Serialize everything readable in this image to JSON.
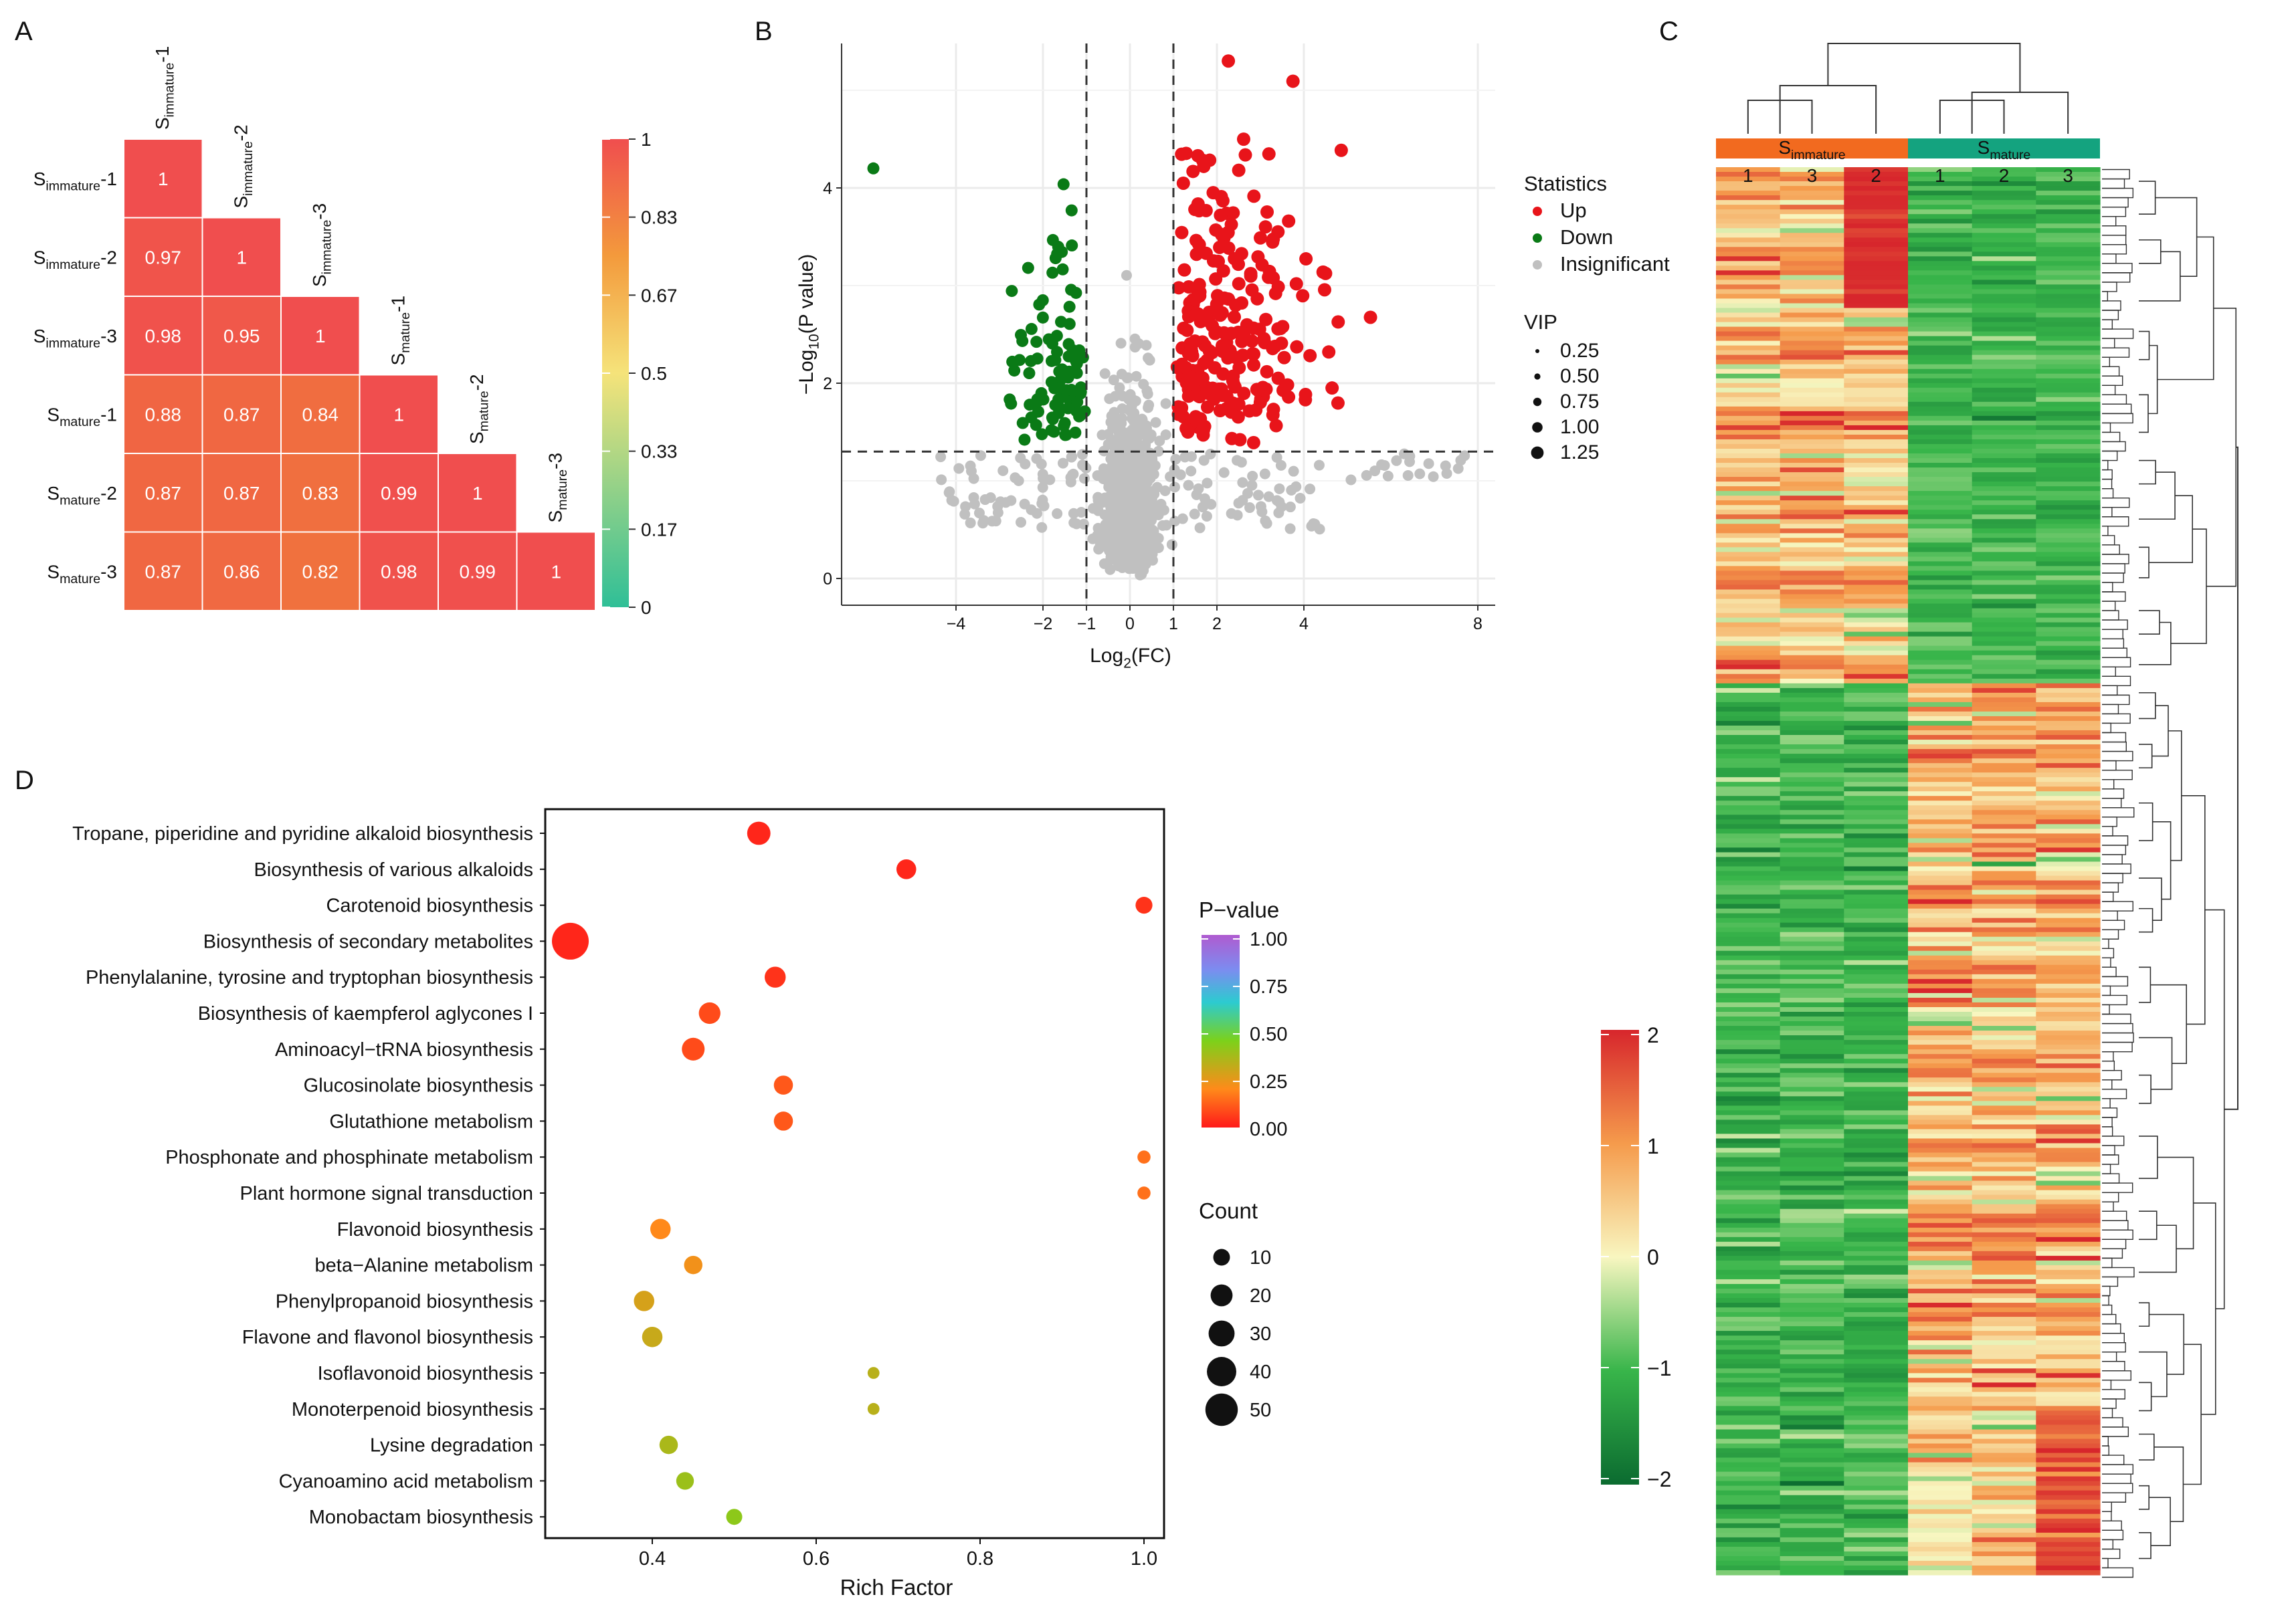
{
  "panels": {
    "a": "A",
    "b": "B",
    "c": "C",
    "d": "D"
  },
  "chart_data": [
    {
      "type": "heatmap",
      "subtype": "correlation",
      "samples": [
        {
          "base": "S",
          "sub": "immature",
          "rep": "-1"
        },
        {
          "base": "S",
          "sub": "immature",
          "rep": "-2"
        },
        {
          "base": "S",
          "sub": "immature",
          "rep": "-3"
        },
        {
          "base": "S",
          "sub": "mature",
          "rep": "-1"
        },
        {
          "base": "S",
          "sub": "mature",
          "rep": "-2"
        },
        {
          "base": "S",
          "sub": "mature",
          "rep": "-3"
        }
      ],
      "values": [
        [
          "1"
        ],
        [
          "0.97",
          "1"
        ],
        [
          "0.98",
          "0.95",
          "1"
        ],
        [
          "0.88",
          "0.87",
          "0.84",
          "1"
        ],
        [
          "0.87",
          "0.87",
          "0.83",
          "0.99",
          "1"
        ],
        [
          "0.87",
          "0.86",
          "0.82",
          "0.98",
          "0.99",
          "1"
        ]
      ],
      "colorbar": {
        "min": 0,
        "max": 1,
        "ticks": [
          "1",
          "0.83",
          "0.67",
          "0.5",
          "0.33",
          "0.17",
          "0"
        ],
        "colors": [
          "#2fbf97",
          "#f5e37a",
          "#f39a3c",
          "#f04e4e"
        ]
      }
    },
    {
      "type": "scatter",
      "subtype": "volcano",
      "xlabel": {
        "pre": "Log",
        "sub": "2",
        "post": "(FC)"
      },
      "ylabel": {
        "pre": "−Log",
        "sub": "10",
        "post": "(P value)"
      },
      "xticks": [
        "−4",
        "−2",
        "−1",
        "0",
        "1",
        "2",
        "4",
        "8"
      ],
      "yticks": [
        "0",
        "2",
        "4"
      ],
      "ylim": [
        -0.4,
        5.6
      ],
      "thresholds": {
        "log2fc": [
          -1,
          1
        ],
        "neglog10p": 1.3
      },
      "legend": {
        "title": "Statistics",
        "items": [
          {
            "label": "Up",
            "color": "#e8141a"
          },
          {
            "label": "Down",
            "color": "#0a7a16"
          },
          {
            "label": "Insignificant",
            "color": "#c0c0c0"
          }
        ]
      },
      "size_legend": {
        "title": "VIP",
        "items": [
          "0.25",
          "0.50",
          "0.75",
          "1.00",
          "1.25"
        ]
      },
      "counts": {
        "up": 240,
        "down": 95,
        "insignificant": 900
      }
    },
    {
      "type": "heatmap",
      "subtype": "clustered",
      "groups": [
        {
          "base": "S",
          "sub": "immature",
          "color": "#f26a1f",
          "columns": [
            "1",
            "3",
            "2"
          ]
        },
        {
          "base": "S",
          "sub": "mature",
          "color": "#14a37f",
          "columns": [
            "1",
            "2",
            "3"
          ]
        }
      ],
      "cluster_split_fraction": 0.368,
      "colorbar": {
        "min": -2,
        "max": 2,
        "ticks": [
          "2",
          "1",
          "0",
          "−1",
          "−2"
        ],
        "colors": [
          "#0b6b30",
          "#38b54a",
          "#f8f6c0",
          "#f59b4c",
          "#d7262c"
        ]
      }
    },
    {
      "type": "scatter",
      "subtype": "kegg_enrichment",
      "xlabel": "Rich Factor",
      "xticks": [
        "0.4",
        "0.6",
        "0.8",
        "1.0"
      ],
      "xlim": [
        0.26,
        1.04
      ],
      "pathways": [
        {
          "name": "Tropane, piperidine and pyridine alkaloid biosynthesis",
          "rich_factor": 0.53,
          "count": 18,
          "pvalue": 0.01
        },
        {
          "name": "Biosynthesis of various alkaloids",
          "rich_factor": 0.71,
          "count": 12,
          "pvalue": 0.01
        },
        {
          "name": "Carotenoid biosynthesis",
          "rich_factor": 1.0,
          "count": 8,
          "pvalue": 0.02
        },
        {
          "name": "Biosynthesis of secondary metabolites",
          "rich_factor": 0.3,
          "count": 52,
          "pvalue": 0.01
        },
        {
          "name": "Phenylalanine, tyrosine and tryptophan biosynthesis",
          "rich_factor": 0.55,
          "count": 14,
          "pvalue": 0.02
        },
        {
          "name": "Biosynthesis of kaempferol aglycones I",
          "rich_factor": 0.47,
          "count": 15,
          "pvalue": 0.04
        },
        {
          "name": "Aminoacyl−tRNA biosynthesis",
          "rich_factor": 0.45,
          "count": 17,
          "pvalue": 0.04
        },
        {
          "name": "Glucosinolate biosynthesis",
          "rich_factor": 0.56,
          "count": 11,
          "pvalue": 0.05
        },
        {
          "name": "Glutathione metabolism",
          "rich_factor": 0.56,
          "count": 11,
          "pvalue": 0.05
        },
        {
          "name": "Phosphonate and phosphinate metabolism",
          "rich_factor": 1.0,
          "count": 4,
          "pvalue": 0.07
        },
        {
          "name": "Plant hormone signal transduction",
          "rich_factor": 1.0,
          "count": 4,
          "pvalue": 0.07
        },
        {
          "name": "Flavonoid biosynthesis",
          "rich_factor": 0.41,
          "count": 13,
          "pvalue": 0.09
        },
        {
          "name": "beta−Alanine metabolism",
          "rich_factor": 0.45,
          "count": 10,
          "pvalue": 0.1
        },
        {
          "name": "Phenylpropanoid biosynthesis",
          "rich_factor": 0.39,
          "count": 13,
          "pvalue": 0.12
        },
        {
          "name": "Flavone and flavonol biosynthesis",
          "rich_factor": 0.4,
          "count": 13,
          "pvalue": 0.13
        },
        {
          "name": "Isoflavonoid biosynthesis",
          "rich_factor": 0.67,
          "count": 3,
          "pvalue": 0.14
        },
        {
          "name": "Monoterpenoid biosynthesis",
          "rich_factor": 0.67,
          "count": 3,
          "pvalue": 0.14
        },
        {
          "name": "Lysine degradation",
          "rich_factor": 0.42,
          "count": 10,
          "pvalue": 0.15
        },
        {
          "name": "Cyanoamino acid metabolism",
          "rich_factor": 0.44,
          "count": 9,
          "pvalue": 0.16
        },
        {
          "name": "Monobactam biosynthesis",
          "rich_factor": 0.5,
          "count": 7,
          "pvalue": 0.17
        }
      ],
      "color_legend": {
        "title": "P−value",
        "ticks": [
          "1.00",
          "0.75",
          "0.50",
          "0.25",
          "0.00"
        ],
        "colors": [
          "#ff1a1a",
          "#ff8a1a",
          "#7cd11a",
          "#2ccbd0",
          "#7c8cf0",
          "#b05bd0"
        ]
      },
      "size_legend": {
        "title": "Count",
        "items": [
          "10",
          "20",
          "30",
          "40",
          "50"
        ]
      }
    }
  ]
}
